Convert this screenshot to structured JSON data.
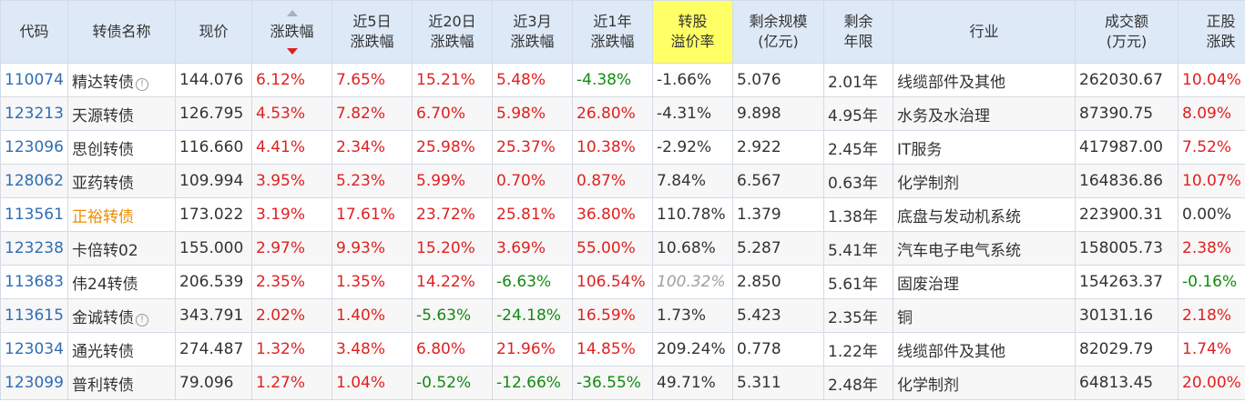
{
  "headers": {
    "code": "代码",
    "name": "转债名称",
    "price": "现价",
    "change": "涨跌幅",
    "chg5d_1": "近5日",
    "chg5d_2": "涨跌幅",
    "chg20d_1": "近20日",
    "chg20d_2": "涨跌幅",
    "chg3m_1": "近3月",
    "chg3m_2": "涨跌幅",
    "chg1y_1": "近1年",
    "chg1y_2": "涨跌幅",
    "premium_1": "转股",
    "premium_2": "溢价率",
    "scale_1": "剩余规模",
    "scale_2": "(亿元)",
    "years_1": "剩余",
    "years_2": "年限",
    "industry": "行业",
    "volume_1": "成交额",
    "volume_2": "(万元)",
    "stock_1": "正股",
    "stock_2": "涨跌"
  },
  "colors": {
    "up": "#e02020",
    "down": "#118a11",
    "code": "#2f6db5",
    "header_bg": "#dde9f7",
    "highlight": "#ffff66"
  },
  "rows": [
    {
      "code": "110074",
      "name": "精达转债",
      "price": "144.076",
      "change": "6.12%",
      "chg5d": "7.65%",
      "chg20d": "15.21%",
      "chg3m": "5.48%",
      "chg1y": "-4.38%",
      "premium": "-1.66%",
      "scale": "5.076",
      "years": "2.01年",
      "industry": "线缆部件及其他",
      "volume": "262030.67",
      "stock": "10.04%"
    },
    {
      "code": "123213",
      "name": "天源转债",
      "price": "126.795",
      "change": "4.53%",
      "chg5d": "7.82%",
      "chg20d": "6.70%",
      "chg3m": "5.98%",
      "chg1y": "26.80%",
      "premium": "-4.31%",
      "scale": "9.898",
      "years": "4.95年",
      "industry": "水务及水治理",
      "volume": "87390.75",
      "stock": "8.09%"
    },
    {
      "code": "123096",
      "name": "思创转债",
      "price": "116.660",
      "change": "4.41%",
      "chg5d": "2.34%",
      "chg20d": "25.98%",
      "chg3m": "25.37%",
      "chg1y": "10.38%",
      "premium": "-2.92%",
      "scale": "2.922",
      "years": "2.45年",
      "industry": "IT服务",
      "volume": "417987.00",
      "stock": "7.52%"
    },
    {
      "code": "128062",
      "name": "亚药转债",
      "price": "109.994",
      "change": "3.95%",
      "chg5d": "5.23%",
      "chg20d": "5.99%",
      "chg3m": "0.70%",
      "chg1y": "0.87%",
      "premium": "7.84%",
      "scale": "6.567",
      "years": "0.63年",
      "industry": "化学制剂",
      "volume": "164836.86",
      "stock": "10.07%"
    },
    {
      "code": "113561",
      "name": "正裕转债",
      "price": "173.022",
      "change": "3.19%",
      "chg5d": "17.61%",
      "chg20d": "23.72%",
      "chg3m": "25.81%",
      "chg1y": "36.80%",
      "premium": "110.78%",
      "scale": "1.379",
      "years": "1.38年",
      "industry": "底盘与发动机系统",
      "volume": "223900.31",
      "stock": "0.00%"
    },
    {
      "code": "123238",
      "name": "卡倍转02",
      "price": "155.000",
      "change": "2.97%",
      "chg5d": "9.93%",
      "chg20d": "15.20%",
      "chg3m": "3.69%",
      "chg1y": "55.00%",
      "premium": "10.68%",
      "scale": "5.287",
      "years": "5.41年",
      "industry": "汽车电子电气系统",
      "volume": "158005.73",
      "stock": "2.38%"
    },
    {
      "code": "113683",
      "name": "伟24转债",
      "price": "206.539",
      "change": "2.35%",
      "chg5d": "1.35%",
      "chg20d": "14.22%",
      "chg3m": "-6.63%",
      "chg1y": "106.54%",
      "premium": "100.32%",
      "scale": "2.850",
      "years": "5.61年",
      "industry": "固废治理",
      "volume": "154263.37",
      "stock": "-0.16%"
    },
    {
      "code": "113615",
      "name": "金诚转债",
      "price": "343.791",
      "change": "2.02%",
      "chg5d": "1.40%",
      "chg20d": "-5.63%",
      "chg3m": "-24.18%",
      "chg1y": "16.59%",
      "premium": "1.73%",
      "scale": "5.423",
      "years": "2.35年",
      "industry": "铜",
      "volume": "30131.16",
      "stock": "2.18%"
    },
    {
      "code": "123034",
      "name": "通光转债",
      "price": "274.487",
      "change": "1.32%",
      "chg5d": "3.48%",
      "chg20d": "6.80%",
      "chg3m": "21.96%",
      "chg1y": "14.85%",
      "premium": "209.24%",
      "scale": "0.778",
      "years": "1.22年",
      "industry": "线缆部件及其他",
      "volume": "82029.79",
      "stock": "1.74%"
    },
    {
      "code": "123099",
      "name": "普利转债",
      "price": "79.096",
      "change": "1.27%",
      "chg5d": "1.04%",
      "chg20d": "-0.52%",
      "chg3m": "-12.66%",
      "chg1y": "-36.55%",
      "premium": "49.71%",
      "scale": "5.311",
      "years": "2.48年",
      "industry": "化学制剂",
      "volume": "64813.45",
      "stock": "20.00%"
    }
  ]
}
